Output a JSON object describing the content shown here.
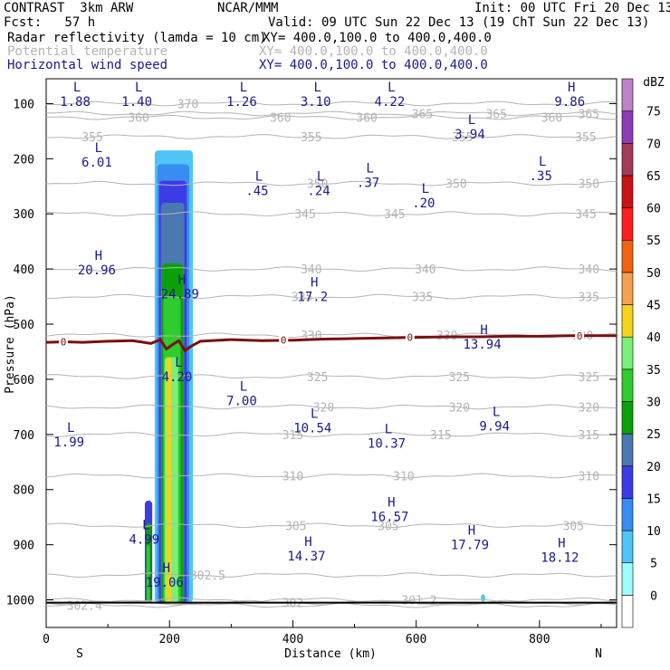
{
  "header": {
    "title_left": "CONTRAST  3km ARW",
    "title_center": "NCAR/MMM",
    "init": "Init: 00 UTC Fri 20 Dec 13",
    "fcst": "Fcst:   57 h",
    "valid": "Valid: 09 UTC Sun 22 Dec 13 (19 ChT Sun 22 Dec 13)",
    "field1": "Radar reflectivity (lamda = 10 cm)",
    "field1_xy": "XY= 400.0,100.0 to 400.0,400.0",
    "field2": "Potential temperature",
    "field2_xy": "XY= 400.0,100.0 to 400.0,400.0",
    "field3": "Horizontal wind speed",
    "field3_xy": "XY= 400.0,100.0 to 400.0,400.0"
  },
  "colors": {
    "theta": "#b4b4b4",
    "wind": "#1a1a8c",
    "zero_line": "#7a1010",
    "axis": "#000000"
  },
  "chart_data": {
    "type": "heatmap",
    "xlabel": "Distance (km)",
    "ylabel": "Pressure (hPa)",
    "xlim": [
      0,
      925
    ],
    "ylim": [
      1050,
      55
    ],
    "x_ticks": [
      0,
      200,
      400,
      600,
      800
    ],
    "y_ticks": [
      100,
      200,
      300,
      400,
      500,
      600,
      700,
      800,
      900,
      1000
    ],
    "x_end_labels": {
      "left": "S",
      "right": "N"
    },
    "colorbar": {
      "unit": "dBZ",
      "levels": [
        0,
        5,
        10,
        15,
        20,
        25,
        30,
        35,
        40,
        45,
        50,
        55,
        60,
        65,
        70,
        75
      ],
      "colors": [
        "#ffffff",
        "#9ffcff",
        "#4fc5f5",
        "#3a8df0",
        "#3c3ce6",
        "#4a78b0",
        "#0aa00a",
        "#2ecc2e",
        "#7af07a",
        "#f5d21e",
        "#f5a050",
        "#f06414",
        "#ff1e1e",
        "#c81414",
        "#a03c5a",
        "#8c3cb4",
        "#be82c8"
      ]
    },
    "reflectivity_cells": [
      {
        "x0": 176,
        "x1": 238,
        "p_top": 185,
        "p_bot": 1005,
        "dbz": 5
      },
      {
        "x0": 180,
        "x1": 232,
        "p_top": 210,
        "p_bot": 1005,
        "dbz": 10
      },
      {
        "x0": 183,
        "x1": 228,
        "p_top": 240,
        "p_bot": 1005,
        "dbz": 15
      },
      {
        "x0": 186,
        "x1": 224,
        "p_top": 280,
        "p_bot": 1005,
        "dbz": 20
      },
      {
        "x0": 188,
        "x1": 222,
        "p_top": 390,
        "p_bot": 1005,
        "dbz": 25
      },
      {
        "x0": 190,
        "x1": 218,
        "p_top": 450,
        "p_bot": 1005,
        "dbz": 30
      },
      {
        "x0": 192,
        "x1": 214,
        "p_top": 560,
        "p_bot": 1005,
        "dbz": 35
      },
      {
        "x0": 195,
        "x1": 203,
        "p_top": 560,
        "p_bot": 1005,
        "dbz": 40
      },
      {
        "x0": 160,
        "x1": 172,
        "p_top": 820,
        "p_bot": 1005,
        "dbz": 15
      },
      {
        "x0": 162,
        "x1": 170,
        "p_top": 860,
        "p_bot": 1005,
        "dbz": 25
      },
      {
        "x0": 163,
        "x1": 168,
        "p_top": 900,
        "p_bot": 1005,
        "dbz": 30
      },
      {
        "x0": 705,
        "x1": 712,
        "p_top": 990,
        "p_bot": 1003,
        "dbz": 5
      }
    ],
    "theta_contours": [
      {
        "value": 370,
        "p": 100,
        "labels": [
          {
            "x": 230,
            "text": "370"
          }
        ]
      },
      {
        "value": 365,
        "p": 118,
        "labels": [
          {
            "x": 610,
            "text": "365"
          },
          {
            "x": 730,
            "text": "365"
          },
          {
            "x": 880,
            "text": "365"
          }
        ]
      },
      {
        "value": 360,
        "p": 125,
        "labels": [
          {
            "x": 150,
            "text": "360"
          },
          {
            "x": 380,
            "text": "360"
          },
          {
            "x": 520,
            "text": "360"
          },
          {
            "x": 820,
            "text": "360"
          }
        ]
      },
      {
        "value": 355,
        "p": 160,
        "labels": [
          {
            "x": 75,
            "text": "355"
          },
          {
            "x": 430,
            "text": "355"
          },
          {
            "x": 675,
            "text": "355"
          },
          {
            "x": 875,
            "text": "355"
          }
        ]
      },
      {
        "value": 350,
        "p": 245,
        "labels": [
          {
            "x": 440,
            "text": "350"
          },
          {
            "x": 665,
            "text": "350"
          },
          {
            "x": 880,
            "text": "350"
          }
        ]
      },
      {
        "value": 345,
        "p": 300,
        "labels": [
          {
            "x": 420,
            "text": "345"
          },
          {
            "x": 565,
            "text": "345"
          },
          {
            "x": 875,
            "text": "345"
          }
        ]
      },
      {
        "value": 340,
        "p": 400,
        "labels": [
          {
            "x": 430,
            "text": "340"
          },
          {
            "x": 615,
            "text": "340"
          },
          {
            "x": 880,
            "text": "340"
          }
        ]
      },
      {
        "value": 335,
        "p": 450,
        "labels": [
          {
            "x": 415,
            "text": "335"
          },
          {
            "x": 610,
            "text": "335"
          },
          {
            "x": 880,
            "text": "335"
          }
        ]
      },
      {
        "value": 330,
        "p": 520,
        "labels": [
          {
            "x": 430,
            "text": "330"
          },
          {
            "x": 650,
            "text": "330"
          },
          {
            "x": 870,
            "text": "330"
          }
        ]
      },
      {
        "value": 325,
        "p": 595,
        "labels": [
          {
            "x": 440,
            "text": "325"
          },
          {
            "x": 670,
            "text": "325"
          },
          {
            "x": 880,
            "text": "325"
          }
        ]
      },
      {
        "value": 320,
        "p": 650,
        "labels": [
          {
            "x": 450,
            "text": "320"
          },
          {
            "x": 670,
            "text": "320"
          },
          {
            "x": 880,
            "text": "320"
          }
        ]
      },
      {
        "value": 315,
        "p": 700,
        "labels": [
          {
            "x": 400,
            "text": "315"
          },
          {
            "x": 640,
            "text": "315"
          },
          {
            "x": 880,
            "text": "315"
          }
        ]
      },
      {
        "value": 310,
        "p": 775,
        "labels": [
          {
            "x": 400,
            "text": "310"
          },
          {
            "x": 580,
            "text": "310"
          },
          {
            "x": 880,
            "text": "310"
          }
        ]
      },
      {
        "value": 305,
        "p": 865,
        "labels": [
          {
            "x": 405,
            "text": "305"
          },
          {
            "x": 555,
            "text": "305"
          },
          {
            "x": 855,
            "text": "305"
          }
        ]
      },
      {
        "value": 302.5,
        "p": 955,
        "labels": [
          {
            "x": 262,
            "text": "302.5"
          }
        ]
      },
      {
        "value": 302,
        "p": 1005,
        "labels": [
          {
            "x": 400,
            "text": "302"
          }
        ]
      },
      {
        "value": 302.4,
        "p": 1010,
        "labels": [
          {
            "x": 62,
            "text": "302.4"
          }
        ]
      },
      {
        "value": 301.2,
        "p": 1000,
        "labels": [
          {
            "x": 605,
            "text": "301.2"
          }
        ]
      }
    ],
    "wind_extrema": [
      {
        "type": "L",
        "x": 50,
        "p": 78,
        "value": "1.88"
      },
      {
        "type": "L",
        "x": 150,
        "p": 78,
        "value": "1.40"
      },
      {
        "type": "L",
        "x": 320,
        "p": 78,
        "value": "1.26"
      },
      {
        "type": "L",
        "x": 440,
        "p": 78,
        "value": "3.10"
      },
      {
        "type": "L",
        "x": 560,
        "p": 78,
        "value": "4.22"
      },
      {
        "type": "H",
        "x": 852,
        "p": 78,
        "value": "9.86"
      },
      {
        "type": "L",
        "x": 690,
        "p": 137,
        "value": "3.94"
      },
      {
        "type": "L",
        "x": 85,
        "p": 188,
        "value": "6.01"
      },
      {
        "type": "L",
        "x": 805,
        "p": 213,
        "value": ".35"
      },
      {
        "type": "L",
        "x": 345,
        "p": 240,
        "value": ".45"
      },
      {
        "type": "L",
        "x": 445,
        "p": 240,
        "value": ".24"
      },
      {
        "type": "L",
        "x": 525,
        "p": 225,
        "value": ".37"
      },
      {
        "type": "L",
        "x": 615,
        "p": 262,
        "value": ".20"
      },
      {
        "type": "H",
        "x": 85,
        "p": 383,
        "value": "20.96"
      },
      {
        "type": "H",
        "x": 220,
        "p": 427,
        "value": "24.89"
      },
      {
        "type": "H",
        "x": 435,
        "p": 432,
        "value": "17.2"
      },
      {
        "type": "H",
        "x": 710,
        "p": 518,
        "value": "13.94"
      },
      {
        "type": "L",
        "x": 215,
        "p": 577,
        "value": "4.20"
      },
      {
        "type": "L",
        "x": 320,
        "p": 621,
        "value": "7.00"
      },
      {
        "type": "L",
        "x": 435,
        "p": 670,
        "value": "10.54"
      },
      {
        "type": "L",
        "x": 730,
        "p": 667,
        "value": "9.94"
      },
      {
        "type": "L",
        "x": 40,
        "p": 695,
        "value": "1.99"
      },
      {
        "type": "L",
        "x": 555,
        "p": 698,
        "value": "10.37"
      },
      {
        "type": "H",
        "x": 560,
        "p": 831,
        "value": "16.57"
      },
      {
        "type": "L",
        "x": 162,
        "p": 872,
        "value": "4.99"
      },
      {
        "type": "H",
        "x": 690,
        "p": 882,
        "value": "17.79"
      },
      {
        "type": "H",
        "x": 425,
        "p": 902,
        "value": "14.37"
      },
      {
        "type": "H",
        "x": 836,
        "p": 905,
        "value": "18.12"
      },
      {
        "type": "H",
        "x": 195,
        "p": 950,
        "value": "19.06"
      }
    ],
    "wind_zero_line": {
      "label": "0",
      "points": [
        [
          0,
          533
        ],
        [
          30,
          532
        ],
        [
          60,
          533
        ],
        [
          100,
          531
        ],
        [
          140,
          530
        ],
        [
          170,
          535
        ],
        [
          185,
          528
        ],
        [
          195,
          545
        ],
        [
          205,
          537
        ],
        [
          215,
          530
        ],
        [
          225,
          548
        ],
        [
          235,
          540
        ],
        [
          250,
          531
        ],
        [
          300,
          528
        ],
        [
          350,
          530
        ],
        [
          400,
          529
        ],
        [
          450,
          527
        ],
        [
          500,
          526
        ],
        [
          550,
          525
        ],
        [
          600,
          524
        ],
        [
          650,
          523
        ],
        [
          700,
          523
        ],
        [
          750,
          522
        ],
        [
          800,
          522
        ],
        [
          850,
          521
        ],
        [
          900,
          521
        ],
        [
          925,
          521
        ]
      ],
      "label_x": [
        28,
        385,
        590,
        865
      ]
    }
  }
}
